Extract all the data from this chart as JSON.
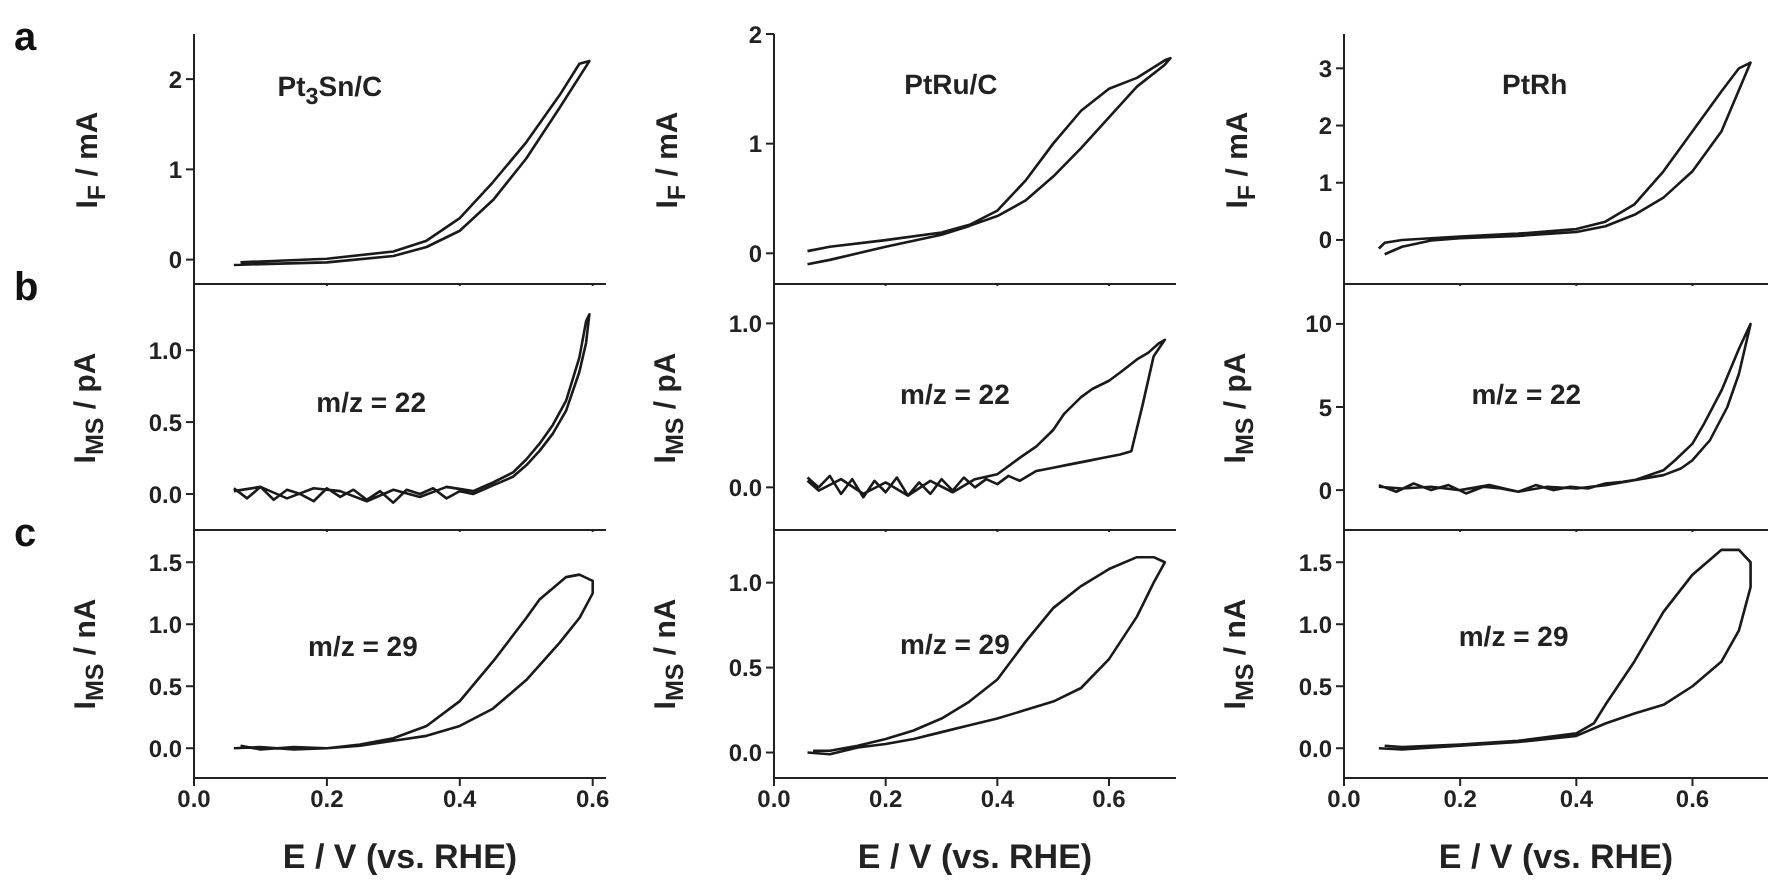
{
  "chart_data": [
    {
      "type": "line",
      "title": "a",
      "annotations": [
        "Pt$_{3}$Sn/C"
      ],
      "ylabel": "I$_{F}$ / mA",
      "tick_labels": "y",
      "color": "#1a1a1a",
      "xlim": [
        0,
        0.62
      ],
      "xticks": [
        {
          "value": 0,
          "label": null
        },
        {
          "value": 0.2,
          "label": null
        },
        {
          "value": 0.4,
          "label": null
        },
        {
          "value": 0.6,
          "label": null
        }
      ],
      "ylim": [
        -0.27,
        2.5
      ],
      "yticks": [
        0,
        1,
        2
      ],
      "x": [
        0.06,
        0.1,
        0.2,
        0.3,
        0.35,
        0.4,
        0.45,
        0.5,
        0.55,
        0.595,
        0.58,
        0.55,
        0.5,
        0.45,
        0.4,
        0.35,
        0.3,
        0.2,
        0.1,
        0.07
      ],
      "values": [
        -0.06,
        -0.05,
        -0.03,
        0.04,
        0.14,
        0.32,
        0.66,
        1.12,
        1.68,
        2.2,
        2.17,
        1.82,
        1.3,
        0.86,
        0.46,
        0.21,
        0.09,
        0.01,
        -0.02,
        -0.03
      ]
    },
    {
      "type": "line",
      "annotations": [
        "PtRu/C"
      ],
      "ylabel": "I$_{F}$ / mA",
      "tick_labels": "y",
      "color": "#1a1a1a",
      "xlim": [
        0,
        0.72
      ],
      "xticks": [
        {
          "value": 0,
          "label": null
        },
        {
          "value": 0.2,
          "label": null
        },
        {
          "value": 0.4,
          "label": null
        },
        {
          "value": 0.6,
          "label": null
        }
      ],
      "ylim": [
        -0.28,
        2
      ],
      "yticks": [
        0,
        1,
        2
      ],
      "x": [
        0.06,
        0.1,
        0.2,
        0.3,
        0.35,
        0.4,
        0.45,
        0.5,
        0.55,
        0.6,
        0.65,
        0.7,
        0.71,
        0.7,
        0.65,
        0.6,
        0.55,
        0.5,
        0.45,
        0.4,
        0.35,
        0.3,
        0.2,
        0.1,
        0.06
      ],
      "values": [
        -0.1,
        -0.06,
        0.06,
        0.17,
        0.25,
        0.34,
        0.48,
        0.7,
        0.96,
        1.24,
        1.52,
        1.72,
        1.78,
        1.76,
        1.6,
        1.5,
        1.3,
        1.0,
        0.66,
        0.39,
        0.26,
        0.19,
        0.12,
        0.06,
        0.02
      ]
    },
    {
      "type": "line",
      "annotations": [
        "PtRh"
      ],
      "ylabel": "I$_{F}$ / mA",
      "tick_labels": "y",
      "color": "#1a1a1a",
      "xlim": [
        0,
        0.73
      ],
      "xticks": [
        {
          "value": 0,
          "label": null
        },
        {
          "value": 0.2,
          "label": null
        },
        {
          "value": 0.4,
          "label": null
        },
        {
          "value": 0.6,
          "label": null
        }
      ],
      "ylim": [
        -0.77,
        3.6
      ],
      "yticks": [
        0,
        1,
        2,
        3
      ],
      "x": [
        0.07,
        0.1,
        0.15,
        0.2,
        0.3,
        0.4,
        0.45,
        0.5,
        0.55,
        0.6,
        0.65,
        0.7,
        0.68,
        0.65,
        0.6,
        0.55,
        0.5,
        0.45,
        0.4,
        0.3,
        0.2,
        0.1,
        0.07,
        0.06
      ],
      "values": [
        -0.25,
        -0.12,
        -0.01,
        0.03,
        0.07,
        0.14,
        0.24,
        0.44,
        0.74,
        1.2,
        1.9,
        3.1,
        3.0,
        2.6,
        1.9,
        1.2,
        0.62,
        0.32,
        0.19,
        0.11,
        0.06,
        0.0,
        -0.05,
        -0.15
      ]
    },
    {
      "type": "line",
      "title": "b",
      "annotations": [
        "m/z = 22"
      ],
      "ylabel": "I$_{MS}$ / pA",
      "tick_labels": "y",
      "color": "#1a1a1a",
      "xlim": [
        0,
        0.62
      ],
      "xticks": [
        {
          "value": 0,
          "label": null
        },
        {
          "value": 0.2,
          "label": null
        },
        {
          "value": 0.4,
          "label": null
        },
        {
          "value": 0.6,
          "label": null
        }
      ],
      "ylim": [
        -0.25,
        1.46
      ],
      "yticks": [
        {
          "value": 0,
          "label": "0.0"
        },
        {
          "value": 0.5,
          "label": "0.5"
        },
        {
          "value": 1,
          "label": "1.0"
        }
      ],
      "x": [
        0.06,
        0.08,
        0.1,
        0.12,
        0.14,
        0.16,
        0.18,
        0.2,
        0.22,
        0.24,
        0.26,
        0.28,
        0.3,
        0.32,
        0.34,
        0.36,
        0.38,
        0.4,
        0.42,
        0.45,
        0.48,
        0.5,
        0.52,
        0.54,
        0.56,
        0.58,
        0.59,
        0.595,
        0.59,
        0.58,
        0.56,
        0.54,
        0.52,
        0.5,
        0.48,
        0.45,
        0.42,
        0.38,
        0.34,
        0.3,
        0.26,
        0.22,
        0.18,
        0.14,
        0.1,
        0.06
      ],
      "values": [
        0.04,
        -0.03,
        0.05,
        -0.04,
        0.03,
        0.0,
        -0.05,
        0.04,
        -0.02,
        0.03,
        -0.04,
        0.02,
        -0.06,
        0.03,
        0.0,
        0.04,
        -0.03,
        0.02,
        0.0,
        0.06,
        0.12,
        0.2,
        0.3,
        0.42,
        0.58,
        0.85,
        1.05,
        1.25,
        1.2,
        0.95,
        0.65,
        0.48,
        0.35,
        0.24,
        0.15,
        0.08,
        0.02,
        0.05,
        -0.02,
        0.03,
        -0.05,
        0.02,
        0.04,
        -0.03,
        0.05,
        0.02
      ]
    },
    {
      "type": "line",
      "annotations": [
        "m/z = 22"
      ],
      "ylabel": "I$_{MS}$ / pA",
      "tick_labels": "y",
      "color": "#1a1a1a",
      "xlim": [
        0,
        0.72
      ],
      "xticks": [
        {
          "value": 0,
          "label": null
        },
        {
          "value": 0.2,
          "label": null
        },
        {
          "value": 0.4,
          "label": null
        },
        {
          "value": 0.6,
          "label": null
        }
      ],
      "ylim": [
        -0.26,
        1.24
      ],
      "yticks": [
        {
          "value": 0,
          "label": "0.0"
        },
        {
          "value": 1,
          "label": "1.0"
        }
      ],
      "x": [
        0.06,
        0.08,
        0.1,
        0.12,
        0.14,
        0.16,
        0.18,
        0.2,
        0.22,
        0.24,
        0.26,
        0.28,
        0.3,
        0.32,
        0.34,
        0.36,
        0.38,
        0.4,
        0.42,
        0.44,
        0.47,
        0.5,
        0.53,
        0.56,
        0.59,
        0.62,
        0.64,
        0.66,
        0.68,
        0.7,
        0.69,
        0.67,
        0.65,
        0.62,
        0.6,
        0.57,
        0.55,
        0.52,
        0.5,
        0.47,
        0.44,
        0.4,
        0.36,
        0.32,
        0.28,
        0.24,
        0.2,
        0.16,
        0.12,
        0.08,
        0.06
      ],
      "values": [
        0.06,
        0.0,
        0.07,
        -0.04,
        0.05,
        -0.06,
        0.04,
        -0.03,
        0.06,
        -0.05,
        0.03,
        -0.04,
        0.05,
        -0.02,
        0.06,
        0.0,
        0.05,
        0.02,
        0.07,
        0.04,
        0.1,
        0.12,
        0.14,
        0.16,
        0.18,
        0.2,
        0.22,
        0.5,
        0.8,
        0.9,
        0.88,
        0.82,
        0.78,
        0.7,
        0.65,
        0.6,
        0.55,
        0.45,
        0.35,
        0.25,
        0.18,
        0.08,
        0.05,
        -0.03,
        0.04,
        -0.05,
        0.03,
        -0.04,
        0.05,
        -0.02,
        0.04
      ]
    },
    {
      "type": "line",
      "annotations": [
        "m/z = 22"
      ],
      "ylabel": "I$_{MS}$ / pA",
      "tick_labels": "y",
      "color": "#1a1a1a",
      "xlim": [
        0,
        0.73
      ],
      "xticks": [
        {
          "value": 0,
          "label": null
        },
        {
          "value": 0.2,
          "label": null
        },
        {
          "value": 0.4,
          "label": null
        },
        {
          "value": 0.6,
          "label": null
        }
      ],
      "ylim": [
        -2.4,
        12.4
      ],
      "yticks": [
        0,
        5,
        10
      ],
      "x": [
        0.06,
        0.09,
        0.12,
        0.15,
        0.18,
        0.21,
        0.24,
        0.27,
        0.3,
        0.33,
        0.36,
        0.39,
        0.42,
        0.45,
        0.48,
        0.5,
        0.55,
        0.58,
        0.6,
        0.63,
        0.66,
        0.68,
        0.7,
        0.68,
        0.65,
        0.62,
        0.6,
        0.57,
        0.55,
        0.5,
        0.45,
        0.4,
        0.35,
        0.3,
        0.25,
        0.2,
        0.15,
        0.1,
        0.06
      ],
      "values": [
        0.3,
        -0.1,
        0.4,
        0.0,
        0.3,
        -0.2,
        0.2,
        0.1,
        -0.1,
        0.3,
        0.0,
        0.2,
        0.1,
        0.4,
        0.5,
        0.6,
        0.9,
        1.3,
        1.8,
        3.0,
        5.0,
        7.0,
        10.0,
        8.5,
        6.0,
        4.0,
        2.8,
        1.8,
        1.2,
        0.6,
        0.3,
        0.1,
        0.2,
        -0.1,
        0.3,
        0.0,
        0.2,
        0.1,
        0.2
      ]
    },
    {
      "type": "line",
      "title": "c",
      "annotations": [
        "m/z = 29"
      ],
      "ylabel": "I$_{MS}$ / nA",
      "xlabel": "E / V (vs. RHE)",
      "color": "#1a1a1a",
      "xlim": [
        0,
        0.62
      ],
      "xticks": [
        {
          "value": 0,
          "label": "0.0"
        },
        {
          "value": 0.2,
          "label": "0.2"
        },
        {
          "value": 0.4,
          "label": "0.4"
        },
        {
          "value": 0.6,
          "label": "0.6"
        }
      ],
      "ylim": [
        -0.24,
        1.76
      ],
      "yticks": [
        {
          "value": 0,
          "label": "0.0"
        },
        {
          "value": 0.5,
          "label": "0.5"
        },
        {
          "value": 1,
          "label": "1.0"
        },
        {
          "value": 1.5,
          "label": "1.5"
        }
      ],
      "x": [
        0.06,
        0.1,
        0.15,
        0.2,
        0.25,
        0.3,
        0.35,
        0.4,
        0.45,
        0.5,
        0.55,
        0.58,
        0.6,
        0.6,
        0.58,
        0.56,
        0.52,
        0.5,
        0.45,
        0.4,
        0.35,
        0.3,
        0.25,
        0.2,
        0.15,
        0.1,
        0.07
      ],
      "values": [
        0.0,
        0.01,
        -0.01,
        0.0,
        0.02,
        0.06,
        0.1,
        0.18,
        0.32,
        0.55,
        0.85,
        1.05,
        1.25,
        1.35,
        1.4,
        1.38,
        1.2,
        1.05,
        0.7,
        0.38,
        0.18,
        0.08,
        0.03,
        0.0,
        0.01,
        -0.01,
        0.02
      ]
    },
    {
      "type": "line",
      "annotations": [
        "m/z = 29"
      ],
      "ylabel": "I$_{MS}$ / nA",
      "xlabel": "E / V (vs. RHE)",
      "color": "#1a1a1a",
      "xlim": [
        0,
        0.72
      ],
      "xticks": [
        {
          "value": 0,
          "label": "0.0"
        },
        {
          "value": 0.2,
          "label": "0.2"
        },
        {
          "value": 0.4,
          "label": "0.4"
        },
        {
          "value": 0.6,
          "label": "0.6"
        }
      ],
      "ylim": [
        -0.15,
        1.31
      ],
      "yticks": [
        {
          "value": 0,
          "label": "0.0"
        },
        {
          "value": 0.5,
          "label": "0.5"
        },
        {
          "value": 1,
          "label": "1.0"
        }
      ],
      "x": [
        0.06,
        0.1,
        0.15,
        0.2,
        0.25,
        0.3,
        0.35,
        0.4,
        0.45,
        0.5,
        0.55,
        0.6,
        0.65,
        0.68,
        0.7,
        0.68,
        0.65,
        0.6,
        0.55,
        0.5,
        0.45,
        0.4,
        0.35,
        0.3,
        0.25,
        0.2,
        0.15,
        0.1,
        0.07
      ],
      "values": [
        0.0,
        -0.01,
        0.03,
        0.05,
        0.08,
        0.12,
        0.16,
        0.2,
        0.25,
        0.3,
        0.38,
        0.55,
        0.8,
        1.0,
        1.12,
        1.15,
        1.15,
        1.08,
        0.98,
        0.85,
        0.65,
        0.43,
        0.3,
        0.2,
        0.13,
        0.08,
        0.04,
        0.01,
        0.01
      ]
    },
    {
      "type": "line",
      "annotations": [
        "m/z = 29"
      ],
      "ylabel": "I$_{MS}$ / nA",
      "xlabel": "E / V (vs. RHE)",
      "color": "#1a1a1a",
      "xlim": [
        0,
        0.73
      ],
      "xticks": [
        {
          "value": 0,
          "label": "0.0"
        },
        {
          "value": 0.2,
          "label": "0.2"
        },
        {
          "value": 0.4,
          "label": "0.4"
        },
        {
          "value": 0.6,
          "label": "0.6"
        }
      ],
      "ylim": [
        -0.24,
        1.76
      ],
      "yticks": [
        {
          "value": 0,
          "label": "0.0"
        },
        {
          "value": 0.5,
          "label": "0.5"
        },
        {
          "value": 1,
          "label": "1.0"
        },
        {
          "value": 1.5,
          "label": "1.5"
        }
      ],
      "x": [
        0.06,
        0.1,
        0.2,
        0.3,
        0.4,
        0.45,
        0.5,
        0.55,
        0.6,
        0.65,
        0.68,
        0.7,
        0.7,
        0.68,
        0.65,
        0.6,
        0.55,
        0.5,
        0.45,
        0.43,
        0.4,
        0.3,
        0.2,
        0.1,
        0.07
      ],
      "values": [
        0.0,
        -0.01,
        0.02,
        0.05,
        0.1,
        0.2,
        0.28,
        0.35,
        0.5,
        0.7,
        0.95,
        1.3,
        1.5,
        1.6,
        1.6,
        1.4,
        1.1,
        0.7,
        0.35,
        0.2,
        0.12,
        0.06,
        0.03,
        0.01,
        0.02
      ]
    }
  ]
}
